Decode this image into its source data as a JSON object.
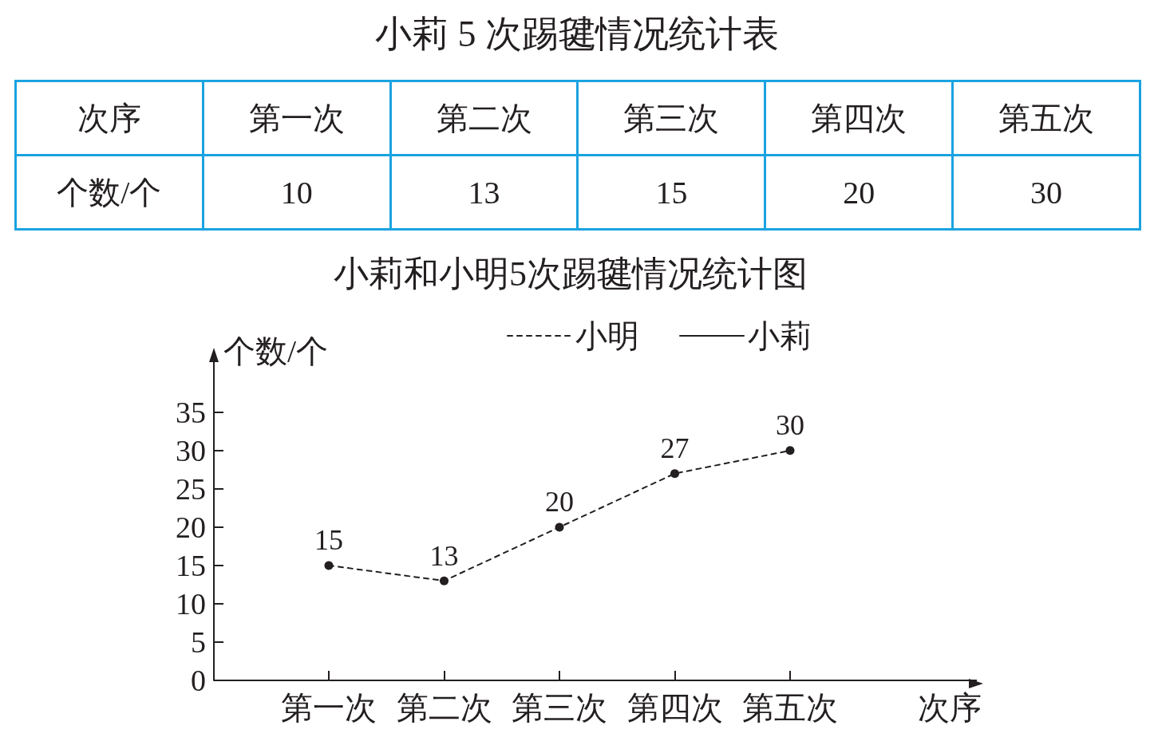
{
  "chart_data": [
    {
      "type": "other",
      "title": "小莉 5 次踢毽情况统计表",
      "xlabel": "次序",
      "ylabel": "个数/个",
      "categories": [
        "第一次",
        "第二次",
        "第三次",
        "第四次",
        "第五次"
      ],
      "values": [
        10,
        13,
        15,
        20,
        30
      ],
      "data_labels": true
    },
    {
      "type": "line",
      "title": "小莉和小明5次踢毽情况统计图",
      "xlabel": "次序",
      "ylabel": "个数/个",
      "categories": [
        "第一次",
        "第二次",
        "第三次",
        "第四次",
        "第五次"
      ],
      "series": [
        {
          "name": "小明",
          "color": "#231f20",
          "line_style": "dashed",
          "values": [
            15,
            13,
            20,
            27,
            30
          ]
        },
        {
          "name": "小莉",
          "color": "#231f20",
          "line_style": "solid",
          "values": [
            null,
            null,
            null,
            null,
            null
          ]
        }
      ],
      "ylim": [
        0,
        43
      ],
      "yticks": [
        0,
        5,
        10,
        15,
        20,
        25,
        30,
        35
      ],
      "marker": "circle",
      "data_labels": true,
      "legend": "top",
      "grid": false
    }
  ]
}
